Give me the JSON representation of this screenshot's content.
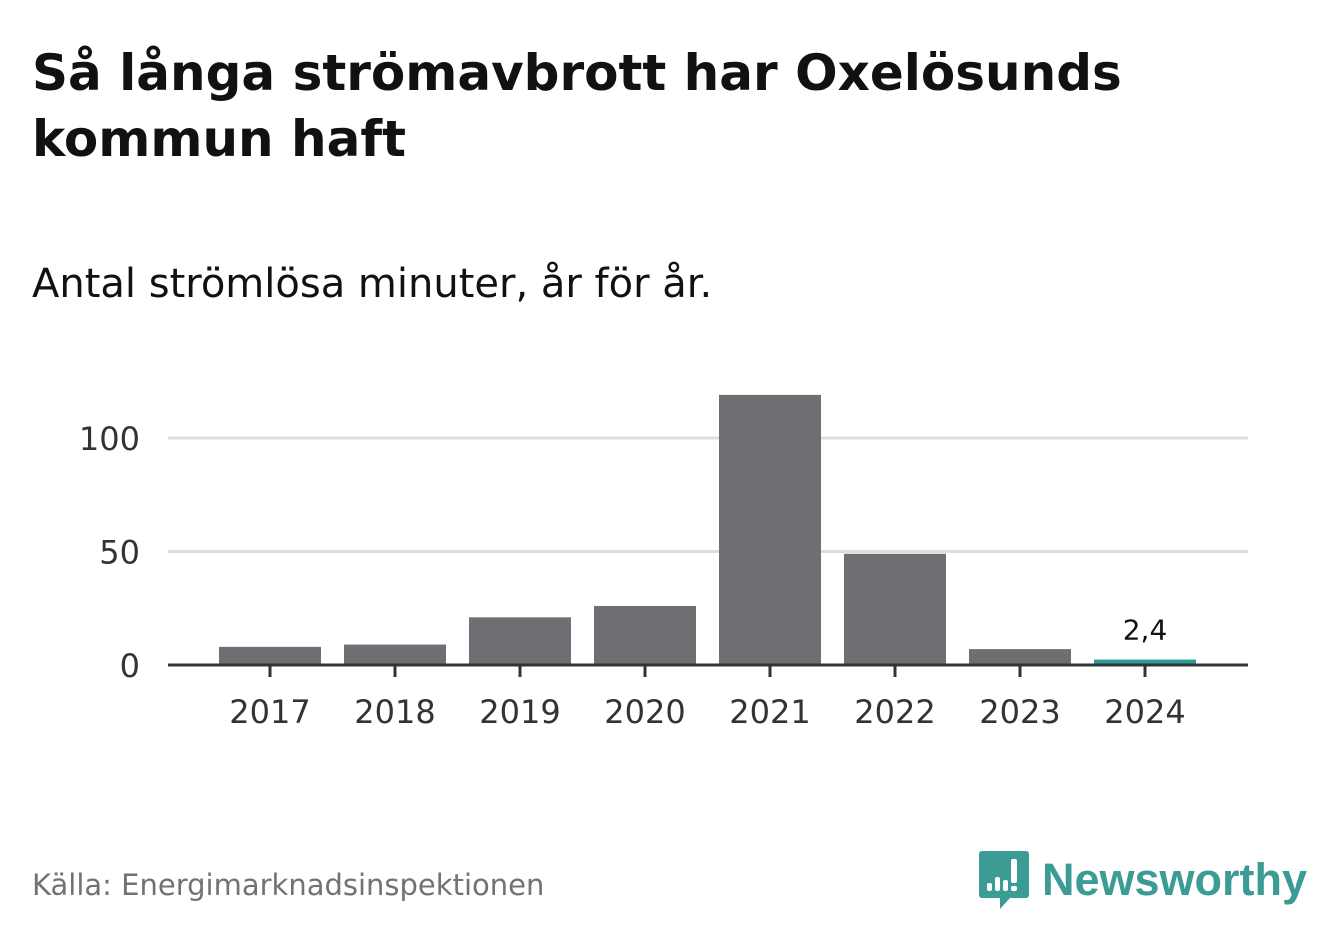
{
  "header": {
    "title": "Så långa strömavbrott har Oxelösunds kommun haft",
    "subtitle": "Antal strömlösa minuter, år för år."
  },
  "chart_data": {
    "type": "bar",
    "categories": [
      "2017",
      "2018",
      "2019",
      "2020",
      "2021",
      "2022",
      "2023",
      "2024"
    ],
    "values": [
      8,
      9,
      21,
      26,
      119,
      49,
      7,
      2.4
    ],
    "ylim": [
      0,
      120
    ],
    "yticks": [
      0,
      50,
      100
    ],
    "ytick_labels": [
      "0",
      "50",
      "100"
    ],
    "grid": true,
    "bar_colors": [
      "#6f6e73",
      "#6f6e73",
      "#6f6e73",
      "#6f6e73",
      "#6f6e73",
      "#6f6e73",
      "#6f6e73",
      "#2a9d94"
    ],
    "annotations": [
      {
        "category": "2024",
        "label": "2,4"
      }
    ],
    "xlabel": "",
    "ylabel": ""
  },
  "footer": {
    "source": "Källa: Energimarknadsinspektionen",
    "brand": "Newsworthy"
  },
  "colors": {
    "bar": "#6f6e73",
    "highlight": "#2a9d94",
    "grid": "#dddddd",
    "axis": "#333333",
    "brand": "#3a9c95"
  },
  "icons": {
    "logo": "newsworthy-logo-icon"
  }
}
